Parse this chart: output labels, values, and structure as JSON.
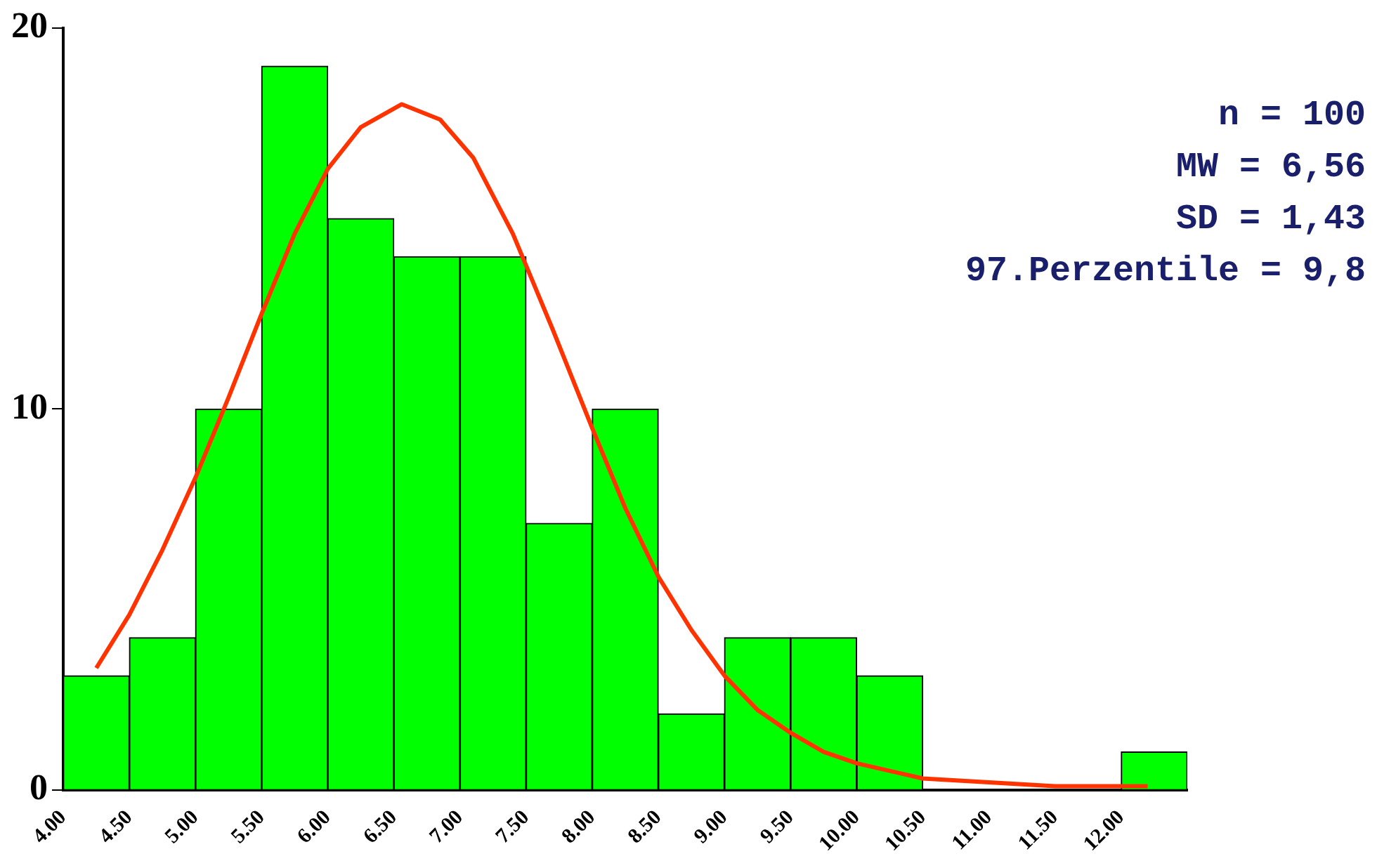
{
  "chart_data": {
    "type": "histogram",
    "bins": [
      4.0,
      4.5,
      5.0,
      5.5,
      6.0,
      6.5,
      7.0,
      7.5,
      8.0,
      8.5,
      9.0,
      9.5,
      10.0,
      10.5,
      11.0,
      11.5,
      12.0,
      12.5
    ],
    "values": [
      3,
      4,
      10,
      19,
      15,
      14,
      14,
      7,
      10,
      2,
      4,
      4,
      3,
      0,
      0,
      0,
      1
    ],
    "color": "#00ff00",
    "series": [
      {
        "type": "line",
        "color": "#ff3300",
        "x": [
          4.25,
          4.5,
          4.75,
          5.0,
          5.25,
          5.5,
          5.75,
          6.0,
          6.25,
          6.56,
          6.85,
          7.1,
          7.4,
          7.7,
          8.0,
          8.25,
          8.5,
          8.75,
          9.0,
          9.25,
          9.5,
          9.75,
          10.0,
          10.5,
          11.0,
          11.5,
          12.2
        ],
        "values": [
          3.2,
          4.6,
          6.3,
          8.2,
          10.3,
          12.5,
          14.6,
          16.3,
          17.4,
          18,
          17.6,
          16.6,
          14.6,
          12.1,
          9.5,
          7.4,
          5.6,
          4.2,
          3.0,
          2.1,
          1.5,
          1.0,
          0.7,
          0.3,
          0.2,
          0.1,
          0.1
        ]
      }
    ],
    "xlim": [
      4.0,
      12.5
    ],
    "xticks": [
      {
        "value": 4.0,
        "label": "4.00"
      },
      {
        "value": 4.5,
        "label": "4.50"
      },
      {
        "value": 5.0,
        "label": "5.00"
      },
      {
        "value": 5.5,
        "label": "5.50"
      },
      {
        "value": 6.0,
        "label": "6.00"
      },
      {
        "value": 6.5,
        "label": "6.50"
      },
      {
        "value": 7.0,
        "label": "7.00"
      },
      {
        "value": 7.5,
        "label": "7.50"
      },
      {
        "value": 8.0,
        "label": "8.00"
      },
      {
        "value": 8.5,
        "label": "8.50"
      },
      {
        "value": 9.0,
        "label": "9.00"
      },
      {
        "value": 9.5,
        "label": "9.50"
      },
      {
        "value": 10.0,
        "label": "10.00"
      },
      {
        "value": 10.5,
        "label": "10.50"
      },
      {
        "value": 11.0,
        "label": "11.00"
      },
      {
        "value": 11.5,
        "label": "11.50"
      },
      {
        "value": 12.0,
        "label": "12.00"
      }
    ],
    "ylim": [
      0,
      20
    ],
    "yticks": [
      0,
      10,
      20
    ],
    "grid": false,
    "legend": false,
    "marker": "none",
    "annotations": [
      "n = 100",
      "MW = 6,56",
      "SD = 1,43",
      "97.Perzentile = 9,8"
    ]
  }
}
